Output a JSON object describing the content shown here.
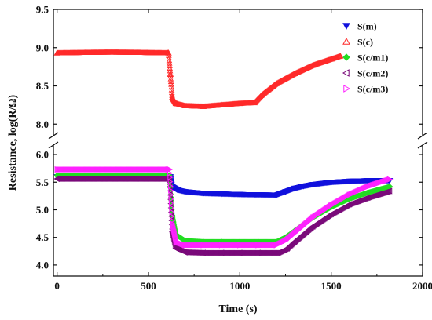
{
  "chart_data": {
    "type": "scatter",
    "xlabel": "Time (s)",
    "ylabel": "Resistance, log(R/Ω)",
    "xlim": [
      -20,
      2000
    ],
    "y_upper_lim": [
      7.9,
      9.5
    ],
    "y_lower_lim": [
      3.8,
      6.1
    ],
    "x_ticks": [
      "0",
      "500",
      "1000",
      "1500",
      "2000"
    ],
    "x_tick_values": [
      0,
      500,
      1000,
      1500,
      2000
    ],
    "y_upper_ticks": [
      "8.0",
      "8.5",
      "9.0",
      "9.5"
    ],
    "y_upper_tick_values": [
      8.0,
      8.5,
      9.0,
      9.5
    ],
    "y_lower_ticks": [
      "4.0",
      "4.5",
      "5.0",
      "5.5",
      "6.0"
    ],
    "y_lower_tick_values": [
      4.0,
      4.5,
      5.0,
      5.5,
      6.0
    ],
    "axis_break": true,
    "legend_position": "top-right",
    "series": [
      {
        "name": "S(m)",
        "color": "#1111dd",
        "marker": "triangle-down-filled",
        "panel": "lower",
        "points": [
          [
            0,
            5.6
          ],
          [
            620,
            5.6
          ],
          [
            630,
            5.42
          ],
          [
            660,
            5.36
          ],
          [
            700,
            5.33
          ],
          [
            800,
            5.3
          ],
          [
            900,
            5.29
          ],
          [
            1000,
            5.28
          ],
          [
            1100,
            5.275
          ],
          [
            1200,
            5.27
          ],
          [
            1250,
            5.33
          ],
          [
            1300,
            5.39
          ],
          [
            1350,
            5.43
          ],
          [
            1400,
            5.46
          ],
          [
            1500,
            5.5
          ],
          [
            1600,
            5.52
          ],
          [
            1700,
            5.53
          ],
          [
            1820,
            5.53
          ]
        ]
      },
      {
        "name": "S(c)",
        "color": "#ff2a2a",
        "marker": "triangle-up-open",
        "panel": "upper",
        "points": [
          [
            0,
            8.93
          ],
          [
            300,
            8.94
          ],
          [
            610,
            8.93
          ],
          [
            620,
            8.65
          ],
          [
            630,
            8.35
          ],
          [
            650,
            8.27
          ],
          [
            700,
            8.24
          ],
          [
            800,
            8.23
          ],
          [
            900,
            8.25
          ],
          [
            1000,
            8.27
          ],
          [
            1080,
            8.28
          ],
          [
            1120,
            8.38
          ],
          [
            1200,
            8.53
          ],
          [
            1300,
            8.66
          ],
          [
            1400,
            8.77
          ],
          [
            1500,
            8.85
          ],
          [
            1550,
            8.89
          ]
        ]
      },
      {
        "name": "S(c/m1)",
        "color": "#22dd22",
        "marker": "diamond-filled",
        "panel": "lower",
        "points": [
          [
            0,
            5.62
          ],
          [
            615,
            5.62
          ],
          [
            630,
            4.9
          ],
          [
            650,
            4.55
          ],
          [
            700,
            4.44
          ],
          [
            800,
            4.42
          ],
          [
            900,
            4.42
          ],
          [
            1000,
            4.42
          ],
          [
            1100,
            4.42
          ],
          [
            1200,
            4.42
          ],
          [
            1250,
            4.5
          ],
          [
            1300,
            4.62
          ],
          [
            1400,
            4.86
          ],
          [
            1500,
            5.05
          ],
          [
            1600,
            5.2
          ],
          [
            1700,
            5.31
          ],
          [
            1820,
            5.42
          ]
        ]
      },
      {
        "name": "S(c/m2)",
        "color": "#7a0a7a",
        "marker": "triangle-left-open",
        "panel": "lower",
        "points": [
          [
            0,
            5.56
          ],
          [
            615,
            5.56
          ],
          [
            630,
            4.6
          ],
          [
            650,
            4.3
          ],
          [
            700,
            4.23
          ],
          [
            800,
            4.22
          ],
          [
            900,
            4.22
          ],
          [
            1000,
            4.22
          ],
          [
            1100,
            4.22
          ],
          [
            1210,
            4.22
          ],
          [
            1260,
            4.3
          ],
          [
            1300,
            4.42
          ],
          [
            1400,
            4.7
          ],
          [
            1500,
            4.92
          ],
          [
            1600,
            5.1
          ],
          [
            1700,
            5.22
          ],
          [
            1820,
            5.34
          ]
        ]
      },
      {
        "name": "S(c/m3)",
        "color": "#ff22ff",
        "marker": "triangle-right-open",
        "panel": "lower",
        "points": [
          [
            0,
            5.73
          ],
          [
            615,
            5.73
          ],
          [
            630,
            4.75
          ],
          [
            650,
            4.42
          ],
          [
            700,
            4.36
          ],
          [
            800,
            4.36
          ],
          [
            900,
            4.36
          ],
          [
            1000,
            4.36
          ],
          [
            1100,
            4.36
          ],
          [
            1200,
            4.36
          ],
          [
            1250,
            4.44
          ],
          [
            1300,
            4.58
          ],
          [
            1400,
            4.86
          ],
          [
            1500,
            5.08
          ],
          [
            1600,
            5.27
          ],
          [
            1700,
            5.42
          ],
          [
            1820,
            5.55
          ]
        ]
      }
    ]
  }
}
